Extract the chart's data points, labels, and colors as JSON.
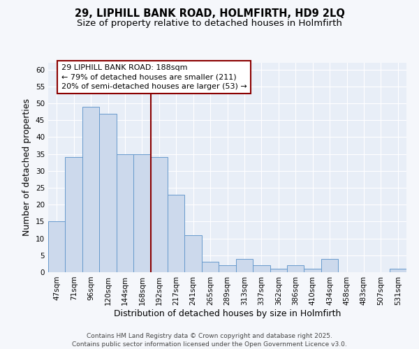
{
  "title_line1": "29, LIPHILL BANK ROAD, HOLMFIRTH, HD9 2LQ",
  "title_line2": "Size of property relative to detached houses in Holmfirth",
  "xlabel": "Distribution of detached houses by size in Holmfirth",
  "ylabel": "Number of detached properties",
  "categories": [
    "47sqm",
    "71sqm",
    "96sqm",
    "120sqm",
    "144sqm",
    "168sqm",
    "192sqm",
    "217sqm",
    "241sqm",
    "265sqm",
    "289sqm",
    "313sqm",
    "337sqm",
    "362sqm",
    "386sqm",
    "410sqm",
    "434sqm",
    "458sqm",
    "483sqm",
    "507sqm",
    "531sqm"
  ],
  "values": [
    15,
    34,
    49,
    47,
    35,
    35,
    34,
    23,
    11,
    3,
    2,
    4,
    2,
    1,
    2,
    1,
    4,
    0,
    0,
    0,
    1
  ],
  "bar_color": "#ccd9ec",
  "bar_edge_color": "#6699cc",
  "background_color": "#f5f7fb",
  "plot_bg_color": "#e8eef7",
  "grid_color": "#ffffff",
  "red_line_bar_index": 6,
  "annotation_text": "29 LIPHILL BANK ROAD: 188sqm\n← 79% of detached houses are smaller (211)\n20% of semi-detached houses are larger (53) →",
  "ylim": [
    0,
    62
  ],
  "yticks": [
    0,
    5,
    10,
    15,
    20,
    25,
    30,
    35,
    40,
    45,
    50,
    55,
    60
  ],
  "footer_line1": "Contains HM Land Registry data © Crown copyright and database right 2025.",
  "footer_line2": "Contains public sector information licensed under the Open Government Licence v3.0.",
  "title_fontsize": 10.5,
  "subtitle_fontsize": 9.5,
  "axis_label_fontsize": 9,
  "tick_fontsize": 7.5,
  "annotation_fontsize": 8,
  "footer_fontsize": 6.5
}
